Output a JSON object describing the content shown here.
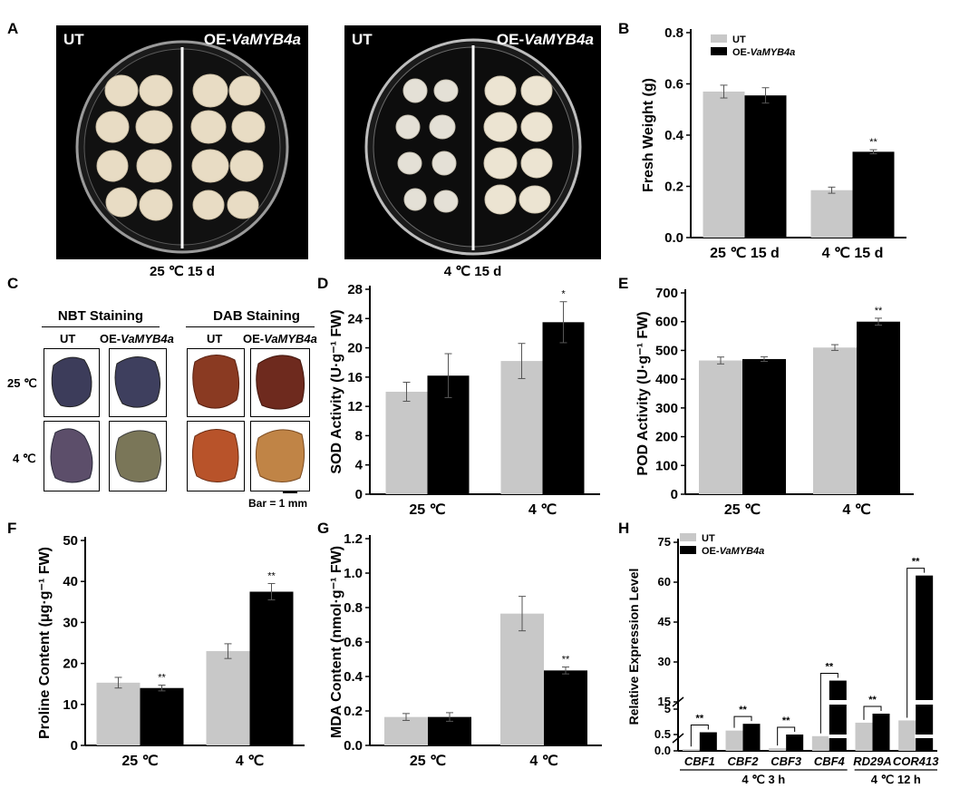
{
  "panel_labels": {
    "a": "A",
    "b": "B",
    "c": "C",
    "d": "D",
    "e": "E",
    "f": "F",
    "g": "G",
    "h": "H"
  },
  "panel_a": {
    "left": {
      "tl": "UT",
      "tr_prefix": "OE-",
      "tr_gene": "VaMYB4a",
      "caption": "25 ℃ 15 d"
    },
    "right": {
      "tl": "UT",
      "tr_prefix": "OE-",
      "tr_gene": "VaMYB4a",
      "caption": "4 ℃ 15 d"
    }
  },
  "panel_c": {
    "nbt_title": "NBT Staining",
    "dab_title": "DAB Staining",
    "col_ut": "UT",
    "col_oe_prefix": "OE-",
    "col_oe_gene": "VaMYB4a",
    "row_25": "25 ℃",
    "row_4": "4 ℃",
    "scale": "Bar = 1 mm"
  },
  "colors": {
    "ut": "#c8c8c8",
    "oe": "#000000"
  },
  "legend": {
    "ut": "UT",
    "oe_prefix": "OE-",
    "oe_gene": "VaMYB4a"
  },
  "chart_data": [
    {
      "id": "B",
      "type": "bar",
      "ylabel": "Fresh Weight (g)",
      "ylim": [
        0,
        0.8
      ],
      "yticks": [
        "0.0",
        "0.2",
        "0.4",
        "0.6",
        "0.8"
      ],
      "categories": [
        "25 ℃ 15 d",
        "4 ℃ 15 d"
      ],
      "series": [
        {
          "name": "UT",
          "values": [
            0.57,
            0.185
          ],
          "errors": [
            0.025,
            0.012
          ]
        },
        {
          "name": "OE-VaMYB4a",
          "values": [
            0.555,
            0.335
          ],
          "errors": [
            0.03,
            0.008
          ]
        }
      ],
      "sig": [
        "",
        "**"
      ]
    },
    {
      "id": "D",
      "type": "bar",
      "ylabel": "SOD Activity (U·g⁻¹ FW)",
      "ylim": [
        0,
        28
      ],
      "yticks": [
        "0",
        "4",
        "8",
        "12",
        "16",
        "20",
        "24",
        "28"
      ],
      "categories": [
        "25 ℃",
        "4 ℃"
      ],
      "series": [
        {
          "name": "UT",
          "values": [
            14,
            18.2
          ],
          "errors": [
            1.3,
            2.4
          ]
        },
        {
          "name": "OE-VaMYB4a",
          "values": [
            16.2,
            23.5
          ],
          "errors": [
            3,
            2.8
          ]
        }
      ],
      "sig": [
        "",
        "*"
      ]
    },
    {
      "id": "E",
      "type": "bar",
      "ylabel": "POD Activity (U·g⁻¹ FW)",
      "ylim": [
        0,
        700
      ],
      "yticks": [
        "0",
        "100",
        "200",
        "300",
        "400",
        "500",
        "600",
        "700"
      ],
      "categories": [
        "25 ℃",
        "4 ℃"
      ],
      "series": [
        {
          "name": "UT",
          "values": [
            465,
            510
          ],
          "errors": [
            12,
            10
          ]
        },
        {
          "name": "OE-VaMYB4a",
          "values": [
            470,
            600
          ],
          "errors": [
            8,
            12
          ]
        }
      ],
      "sig": [
        "",
        "**"
      ]
    },
    {
      "id": "F",
      "type": "bar",
      "ylabel": "Proline Content (μg·g⁻¹ FW)",
      "ylim": [
        0,
        50
      ],
      "yticks": [
        "0",
        "10",
        "20",
        "30",
        "40",
        "50"
      ],
      "categories": [
        "25 ℃",
        "4 ℃"
      ],
      "series": [
        {
          "name": "UT",
          "values": [
            15.3,
            23
          ],
          "errors": [
            1.3,
            1.8
          ]
        },
        {
          "name": "OE-VaMYB4a",
          "values": [
            14,
            37.5
          ],
          "errors": [
            0.7,
            2
          ]
        }
      ],
      "sig": [
        "**",
        "**"
      ]
    },
    {
      "id": "G",
      "type": "bar",
      "ylabel": "MDA Content (nmol·g⁻¹ FW)",
      "ylim": [
        0,
        1.2
      ],
      "yticks": [
        "0.0",
        "0.2",
        "0.4",
        "0.6",
        "0.8",
        "1.0",
        "1.2"
      ],
      "categories": [
        "25 ℃",
        "4 ℃"
      ],
      "series": [
        {
          "name": "UT",
          "values": [
            0.165,
            0.765
          ],
          "errors": [
            0.02,
            0.1
          ]
        },
        {
          "name": "OE-VaMYB4a",
          "values": [
            0.165,
            0.435
          ],
          "errors": [
            0.025,
            0.02
          ]
        }
      ],
      "sig": [
        "",
        "**"
      ]
    },
    {
      "id": "H",
      "type": "bar",
      "ylabel": "Relative Expression Level",
      "yticks_low": [
        "0.0",
        "0.5"
      ],
      "yticks_mid": [
        "5"
      ],
      "yticks_high": [
        "15",
        "30",
        "45",
        "60",
        "75"
      ],
      "categories": [
        "CBF1",
        "CBF2",
        "CBF3",
        "CBF4",
        "RD29A",
        "COR413"
      ],
      "group_labels": [
        "4 ℃ 3 h",
        "4 ℃ 12 h"
      ],
      "series": [
        {
          "name": "UT",
          "values": [
            0.05,
            1.2,
            0.08,
            0.45,
            2.6,
            3.0
          ]
        },
        {
          "name": "OE-VaMYB4a",
          "values": [
            0.9,
            2.4,
            0.5,
            23,
            4.2,
            62.5
          ]
        }
      ],
      "sig": [
        "**",
        "**",
        "**",
        "**",
        "**",
        "**"
      ]
    }
  ]
}
